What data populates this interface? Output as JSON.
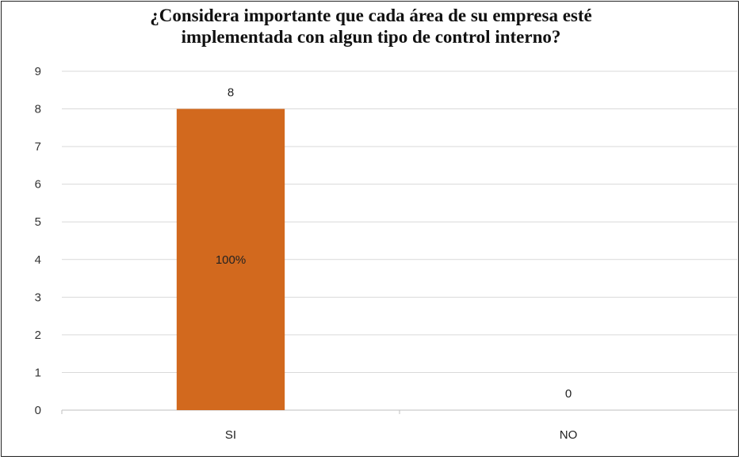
{
  "chart_data": {
    "type": "bar",
    "title_lines": [
      "¿Considera importante que cada área de su empresa esté",
      "implementada con algun tipo de control interno?"
    ],
    "categories": [
      "SI",
      "NO"
    ],
    "values": [
      8,
      0
    ],
    "data_labels": [
      "8",
      "0"
    ],
    "inner_labels": [
      "100%",
      ""
    ],
    "ylim": [
      0,
      9
    ],
    "yticks": [
      0,
      1,
      2,
      3,
      4,
      5,
      6,
      7,
      8,
      9
    ],
    "grid": true,
    "legend": "none",
    "bar_color": "#D2691E",
    "grid_color": "#D9D9D9"
  }
}
